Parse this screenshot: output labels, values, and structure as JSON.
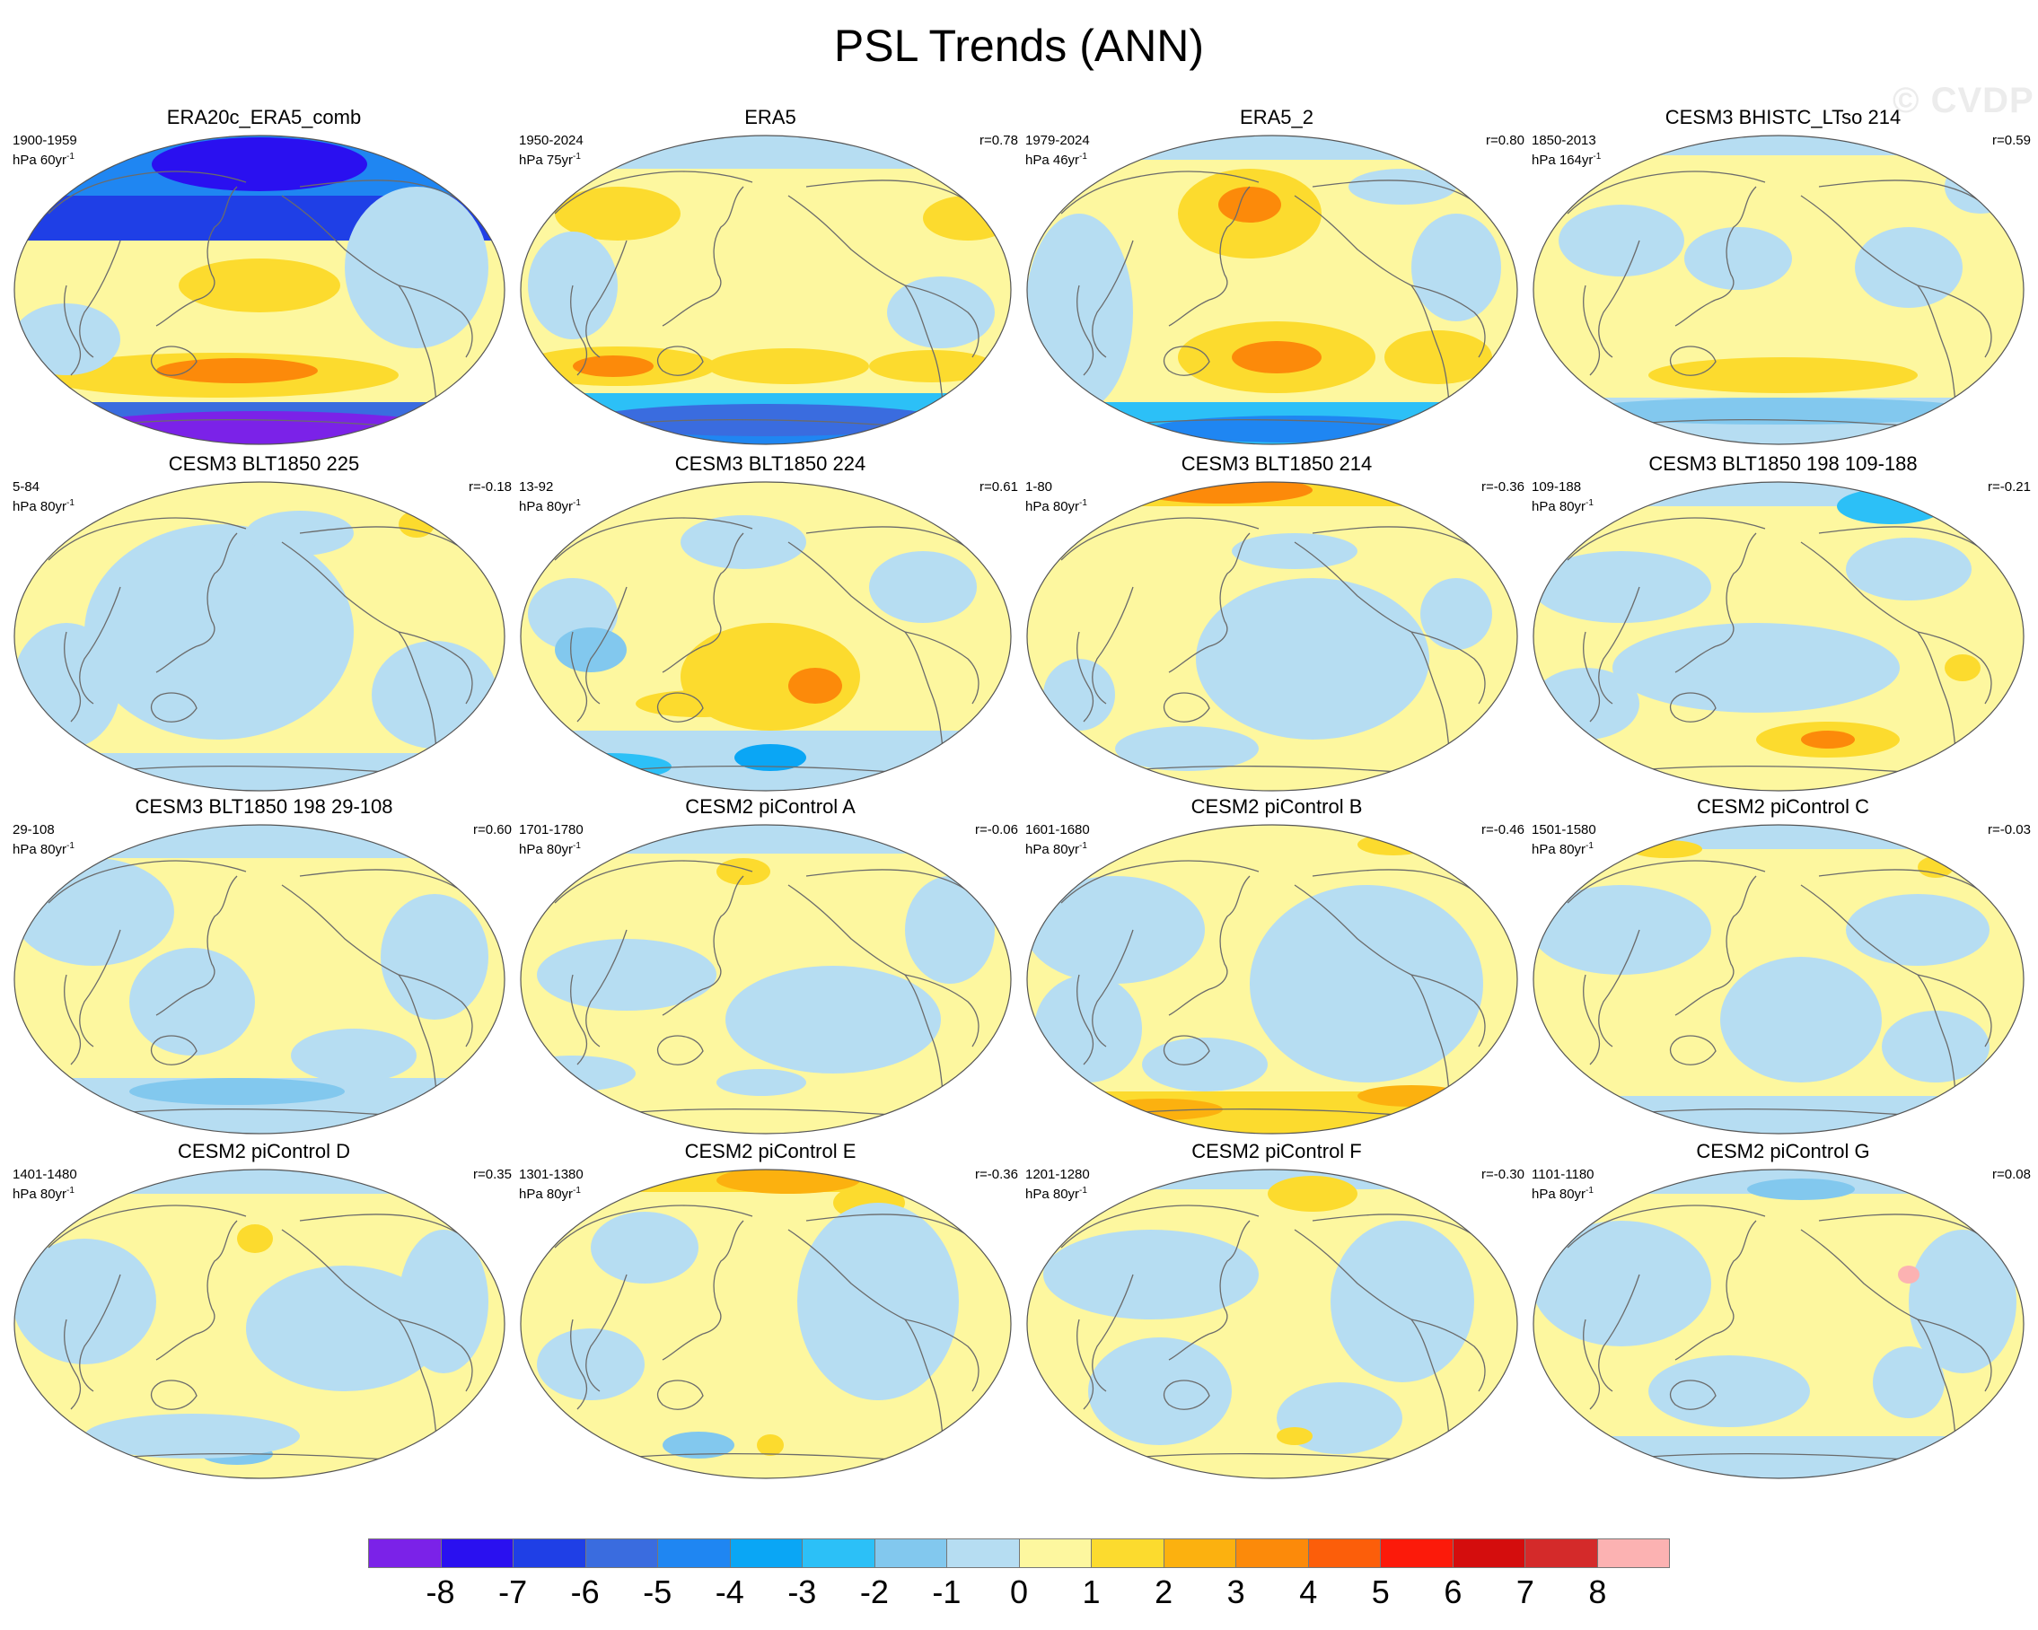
{
  "title": "PSL Trends (ANN)",
  "watermark": "© CVDP",
  "panels": [
    {
      "title": "ERA20c_ERA5_comb",
      "period": "1900-1959",
      "units": "hPa 60yr",
      "units_exp": "-1",
      "corr": "",
      "pattern": "obs_strong"
    },
    {
      "title": "ERA5",
      "period": "1950-2024",
      "units": "hPa 75yr",
      "units_exp": "-1",
      "corr": "r=0.78",
      "pattern": "obs_mid"
    },
    {
      "title": "ERA5_2",
      "period": "1979-2024",
      "units": "hPa 46yr",
      "units_exp": "-1",
      "corr": "r=0.80",
      "pattern": "obs_mid2"
    },
    {
      "title": "CESM3 BHISTC_LTso 214",
      "period": "1850-2013",
      "units": "hPa 164yr",
      "units_exp": "-1",
      "corr": "r=0.59",
      "pattern": "weak_south"
    },
    {
      "title": "CESM3 BLT1850 225",
      "period": "5-84",
      "units": "hPa 80yr",
      "units_exp": "-1",
      "corr": "r=-0.18",
      "pattern": "weak_a"
    },
    {
      "title": "CESM3 BLT1850 224",
      "period": "13-92",
      "units": "hPa 80yr",
      "units_exp": "-1",
      "corr": "r=0.61",
      "pattern": "mid_south"
    },
    {
      "title": "CESM3 BLT1850 214",
      "period": "1-80",
      "units": "hPa 80yr",
      "units_exp": "-1",
      "corr": "r=-0.36",
      "pattern": "north_pos"
    },
    {
      "title": "CESM3 BLT1850 198 109-188",
      "period": "109-188",
      "units": "hPa 80yr",
      "units_exp": "-1",
      "corr": "r=-0.21",
      "pattern": "weak_b"
    },
    {
      "title": "CESM3 BLT1850 198 29-108",
      "period": "29-108",
      "units": "hPa 80yr",
      "units_exp": "-1",
      "corr": "r=0.60",
      "pattern": "weak_c"
    },
    {
      "title": "CESM2 piControl A",
      "period": "1701-1780",
      "units": "hPa 80yr",
      "units_exp": "-1",
      "corr": "r=-0.06",
      "pattern": "north_neg"
    },
    {
      "title": "CESM2 piControl B",
      "period": "1601-1680",
      "units": "hPa 80yr",
      "units_exp": "-1",
      "corr": "r=-0.46",
      "pattern": "south_pos"
    },
    {
      "title": "CESM2 piControl C",
      "period": "1501-1580",
      "units": "hPa 80yr",
      "units_exp": "-1",
      "corr": "r=-0.03",
      "pattern": "weak_d"
    },
    {
      "title": "CESM2 piControl D",
      "period": "1401-1480",
      "units": "hPa 80yr",
      "units_exp": "-1",
      "corr": "r=0.35",
      "pattern": "weak_e"
    },
    {
      "title": "CESM2 piControl E",
      "period": "1301-1380",
      "units": "hPa 80yr",
      "units_exp": "-1",
      "corr": "r=-0.36",
      "pattern": "north_pos2"
    },
    {
      "title": "CESM2 piControl F",
      "period": "1201-1280",
      "units": "hPa 80yr",
      "units_exp": "-1",
      "corr": "r=-0.30",
      "pattern": "weak_f"
    },
    {
      "title": "CESM2 piControl G",
      "period": "1101-1180",
      "units": "hPa 80yr",
      "units_exp": "-1",
      "corr": "r=0.08",
      "pattern": "weak_g"
    }
  ],
  "colorbar": {
    "labels": [
      "-8",
      "-7",
      "-6",
      "-5",
      "-4",
      "-3",
      "-2",
      "-1",
      "0",
      "1",
      "2",
      "3",
      "4",
      "5",
      "6",
      "7",
      "8"
    ],
    "colors": [
      "#7b22e8",
      "#2a10f0",
      "#1f3fe6",
      "#3a6cdf",
      "#1f86f2",
      "#0aa6f5",
      "#2cc0f7",
      "#82c8ee",
      "#b6ddf2",
      "#fdf79f",
      "#fcdb2e",
      "#fcb10f",
      "#fc8a0a",
      "#fc5e0a",
      "#fc1a0a",
      "#d40d0d",
      "#d42a2a",
      "#fcb2b2"
    ]
  }
}
